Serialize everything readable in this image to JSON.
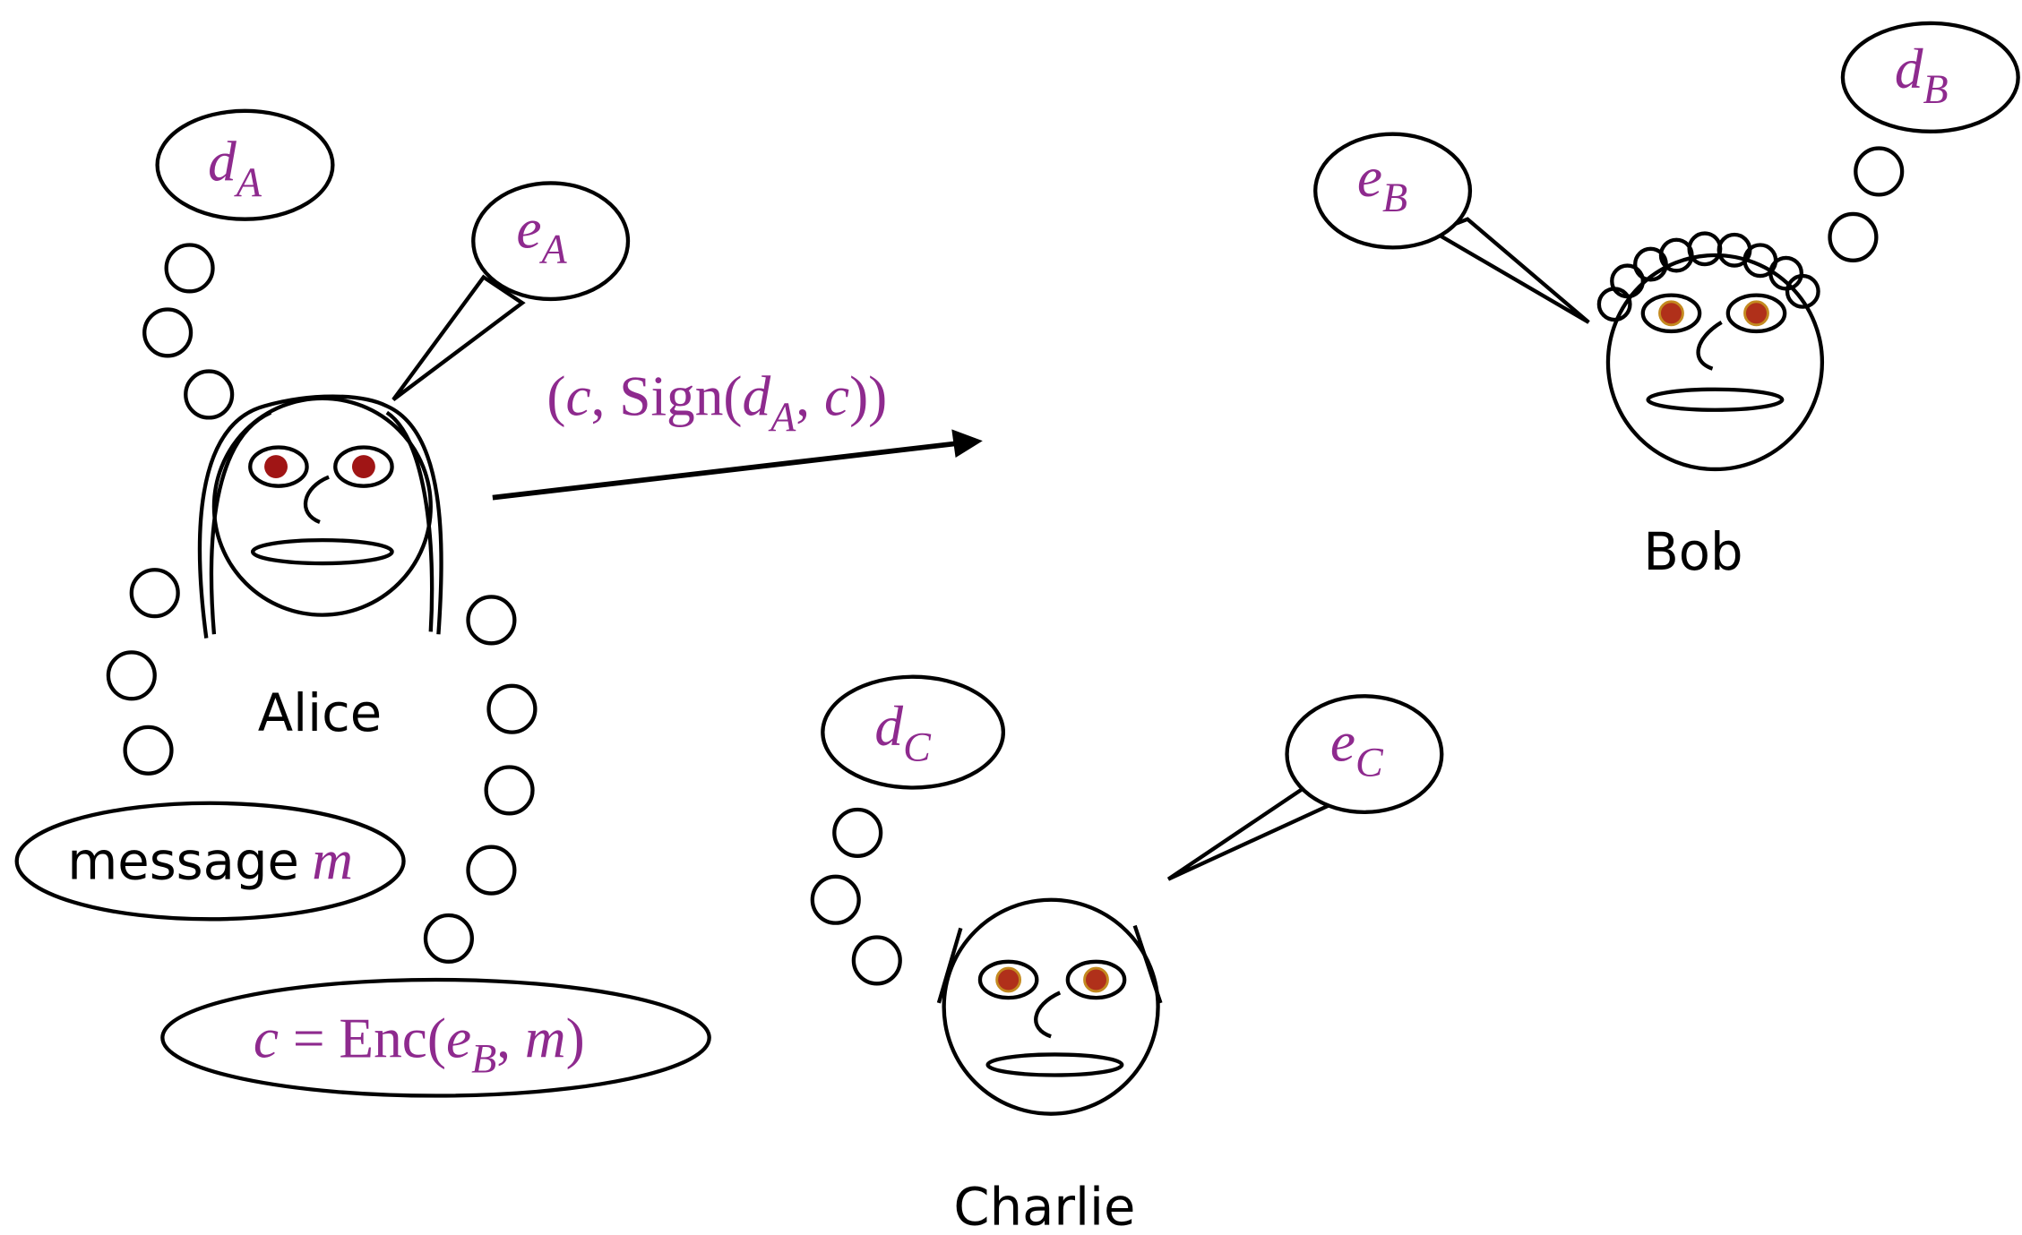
{
  "people": [
    {
      "name": "Alice",
      "private_key": {
        "symbol": "d",
        "subscript": "A"
      },
      "public_key": {
        "symbol": "e",
        "subscript": "A"
      }
    },
    {
      "name": "Bob",
      "private_key": {
        "symbol": "d",
        "subscript": "B"
      },
      "public_key": {
        "symbol": "e",
        "subscript": "B"
      }
    },
    {
      "name": "Charlie",
      "private_key": {
        "symbol": "d",
        "subscript": "C"
      },
      "public_key": {
        "symbol": "e",
        "subscript": "C"
      }
    }
  ],
  "alice_notes": {
    "message": {
      "label": "message",
      "variable": "m"
    },
    "ciphertext": [
      "c",
      " = Enc(",
      "e",
      "B",
      ", ",
      "m",
      ")"
    ]
  },
  "transmission": [
    "(",
    "c",
    ", Sign(",
    "d",
    "A",
    ", ",
    "c",
    "))"
  ]
}
